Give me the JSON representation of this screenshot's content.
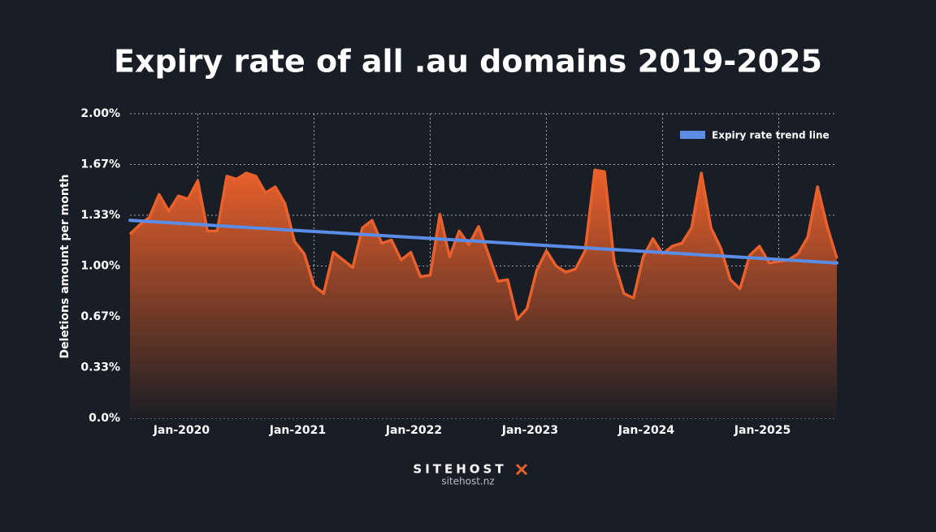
{
  "chart_data": {
    "type": "area",
    "title": "Expiry rate of all .au domains 2019-2025",
    "y_label": "Deletions amount per month",
    "x": [
      "2019-06",
      "2019-07",
      "2019-08",
      "2019-09",
      "2019-10",
      "2019-11",
      "2019-12",
      "2020-01",
      "2020-02",
      "2020-03",
      "2020-04",
      "2020-05",
      "2020-06",
      "2020-07",
      "2020-08",
      "2020-09",
      "2020-10",
      "2020-11",
      "2020-12",
      "2021-01",
      "2021-02",
      "2021-03",
      "2021-04",
      "2021-05",
      "2021-06",
      "2021-07",
      "2021-08",
      "2021-09",
      "2021-10",
      "2021-11",
      "2021-12",
      "2022-01",
      "2022-02",
      "2022-03",
      "2022-04",
      "2022-05",
      "2022-06",
      "2022-07",
      "2022-08",
      "2022-09",
      "2022-10",
      "2022-11",
      "2022-12",
      "2023-01",
      "2023-02",
      "2023-03",
      "2023-04",
      "2023-05",
      "2023-06",
      "2023-07",
      "2023-08",
      "2023-09",
      "2023-10",
      "2023-11",
      "2023-12",
      "2024-01",
      "2024-02",
      "2024-03",
      "2024-04",
      "2024-05",
      "2024-06",
      "2024-07",
      "2024-08",
      "2024-09",
      "2024-10",
      "2024-11",
      "2024-12",
      "2025-01",
      "2025-02",
      "2025-03",
      "2025-04",
      "2025-05",
      "2025-06",
      "2025-07"
    ],
    "series": [
      {
        "color": "#e8602b",
        "values": [
          1.21,
          1.27,
          1.32,
          1.47,
          1.36,
          1.46,
          1.44,
          1.56,
          1.23,
          1.23,
          1.59,
          1.57,
          1.61,
          1.59,
          1.48,
          1.52,
          1.41,
          1.16,
          1.08,
          0.87,
          0.82,
          1.09,
          1.04,
          0.99,
          1.25,
          1.3,
          1.15,
          1.17,
          1.04,
          1.09,
          0.93,
          0.94,
          1.34,
          1.06,
          1.23,
          1.14,
          1.26,
          1.08,
          0.9,
          0.91,
          0.65,
          0.72,
          0.97,
          1.1,
          1.0,
          0.96,
          0.98,
          1.1,
          1.63,
          1.62,
          1.03,
          0.82,
          0.79,
          1.06,
          1.18,
          1.08,
          1.13,
          1.15,
          1.25,
          1.61,
          1.25,
          1.12,
          0.91,
          0.85,
          1.07,
          1.13,
          1.02,
          1.03,
          1.04,
          1.08,
          1.19,
          1.52,
          1.26,
          1.05
        ]
      },
      {
        "name": "Expiry rate trend line",
        "color": "#5b8de6",
        "x": [
          "2019-06",
          "2025-07"
        ],
        "values": [
          1.3,
          1.02
        ]
      }
    ],
    "xlim": [
      "2019-06",
      "2025-07"
    ],
    "xticks": [
      {
        "value": "2020-01",
        "label": "Jan-2020"
      },
      {
        "value": "2021-01",
        "label": "Jan-2021"
      },
      {
        "value": "2022-01",
        "label": "Jan-2022"
      },
      {
        "value": "2023-01",
        "label": "Jan-2023"
      },
      {
        "value": "2024-01",
        "label": "Jan-2024"
      },
      {
        "value": "2025-01",
        "label": "Jan-2025"
      }
    ],
    "ylim": [
      0,
      2
    ],
    "yticks": [
      {
        "value": 0,
        "label": "0.0%"
      },
      {
        "value": 0.3333,
        "label": "0.33%"
      },
      {
        "value": 0.6667,
        "label": "0.67%"
      },
      {
        "value": 1,
        "label": "1.00%"
      },
      {
        "value": 1.3333,
        "label": "1.33%"
      },
      {
        "value": 1.6667,
        "label": "1.67%"
      },
      {
        "value": 2,
        "label": "2.00%"
      }
    ],
    "grid": true,
    "legend": "top-right"
  },
  "footer": {
    "brand": "SITEHOST",
    "url": "sitehost.nz"
  }
}
